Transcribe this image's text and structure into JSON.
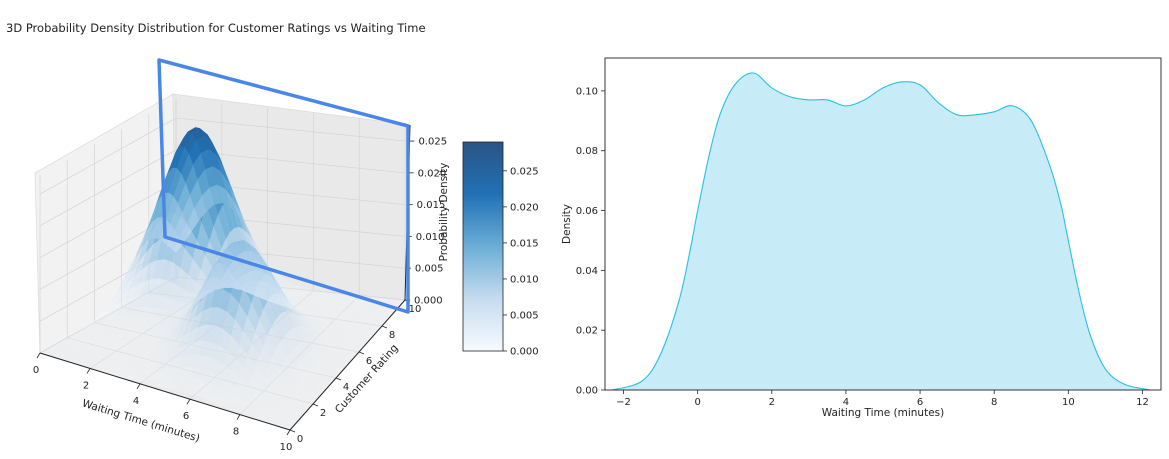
{
  "chart_data": [
    {
      "type": "surface3d",
      "title": "3D Probability Density Distribution for Customer Ratings vs Waiting Time",
      "xlabel": "Waiting Time (minutes)",
      "ylabel": "Customer Rating",
      "zlabel": "Probability Density",
      "xlim": [
        0,
        10
      ],
      "ylim": [
        0,
        10
      ],
      "zlim": [
        0,
        0.028
      ],
      "xticks": [
        "0",
        "2",
        "4",
        "6",
        "8",
        "10"
      ],
      "yticks": [
        "0",
        "2",
        "4",
        "6",
        "8",
        "10"
      ],
      "zticks": [
        "0.000",
        "0.005",
        "0.010",
        "0.015",
        "0.020",
        "0.025"
      ],
      "colormap": "Blues",
      "surface_peaks": [
        {
          "x": 2,
          "y": 8,
          "z": 0.027
        },
        {
          "x": 6,
          "y": 4,
          "z": 0.018
        }
      ],
      "colorbar": {
        "min": 0,
        "max": 0.029,
        "ticks": [
          "0.000",
          "0.005",
          "0.010",
          "0.015",
          "0.020",
          "0.025"
        ]
      },
      "highlight_color": "#4a86e8"
    },
    {
      "type": "area",
      "title": "",
      "xlabel": "Waiting Time (minutes)",
      "ylabel": "Density",
      "xlim": [
        -2.5,
        12.5
      ],
      "ylim": [
        0,
        0.111
      ],
      "xticks": [
        "−2",
        "0",
        "2",
        "4",
        "6",
        "8",
        "10",
        "12"
      ],
      "yticks": [
        "0.00",
        "0.02",
        "0.04",
        "0.06",
        "0.08",
        "0.10"
      ],
      "x": [
        -2.3,
        -1.5,
        -1.0,
        -0.5,
        -0.2,
        0.0,
        0.3,
        0.6,
        1.0,
        1.5,
        2.0,
        2.5,
        3.0,
        3.5,
        4.0,
        4.5,
        5.0,
        5.5,
        6.0,
        6.5,
        7.0,
        7.5,
        8.0,
        8.5,
        9.0,
        9.5,
        9.8,
        10.0,
        10.3,
        10.6,
        11.0,
        11.5,
        12.2
      ],
      "y": [
        0.0,
        0.003,
        0.012,
        0.03,
        0.047,
        0.06,
        0.078,
        0.092,
        0.102,
        0.106,
        0.101,
        0.098,
        0.097,
        0.097,
        0.095,
        0.097,
        0.101,
        0.103,
        0.102,
        0.096,
        0.092,
        0.092,
        0.093,
        0.095,
        0.09,
        0.075,
        0.062,
        0.05,
        0.032,
        0.018,
        0.007,
        0.002,
        0.0
      ],
      "line_color": "#29c0e0",
      "fill_color": "#c7ecf7"
    }
  ]
}
